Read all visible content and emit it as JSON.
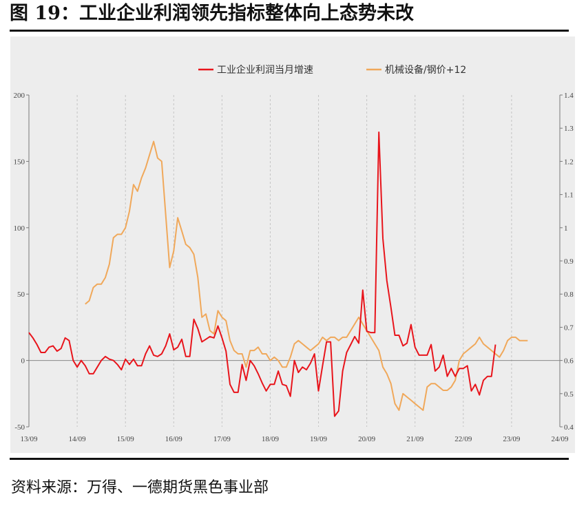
{
  "figure": {
    "title": "图 19：工业企业利润领先指标整体向上态势未改",
    "source": "资料来源：万得、一德期货黑色事业部"
  },
  "chart_data": {
    "type": "line",
    "legend_position": "top-center",
    "grid": "vertical-dashed",
    "x_tick_labels": [
      "13/09",
      "14/09",
      "15/09",
      "16/09",
      "17/09",
      "18/09",
      "19/09",
      "20/09",
      "21/09",
      "22/09",
      "23/09",
      "24/09"
    ],
    "y_left": {
      "ylim": [
        -50,
        200
      ],
      "ticks": [
        -50,
        0,
        50,
        100,
        150,
        200
      ]
    },
    "y_right": {
      "ylim": [
        0.4,
        1.4
      ],
      "ticks": [
        "0.4",
        "0.5",
        "0.6",
        "0.7",
        "0.8",
        "0.9",
        "1",
        "1.1",
        "1.2",
        "1.3",
        "1.4"
      ]
    },
    "series": [
      {
        "name": "工业企业利润当月增速",
        "axis": "left",
        "color": "#e8141b",
        "points": [
          [
            "2013-09",
            21
          ],
          [
            "2013-10",
            17
          ],
          [
            "2013-11",
            12
          ],
          [
            "2013-12",
            6
          ],
          [
            "2014-01",
            6
          ],
          [
            "2014-02",
            10
          ],
          [
            "2014-03",
            11
          ],
          [
            "2014-04",
            7
          ],
          [
            "2014-05",
            9
          ],
          [
            "2014-06",
            17
          ],
          [
            "2014-07",
            15
          ],
          [
            "2014-08",
            0
          ],
          [
            "2014-09",
            -5
          ],
          [
            "2014-10",
            0
          ],
          [
            "2014-11",
            -4
          ],
          [
            "2014-12",
            -10
          ],
          [
            "2015-01",
            -10
          ],
          [
            "2015-02",
            -5
          ],
          [
            "2015-03",
            0
          ],
          [
            "2015-04",
            3
          ],
          [
            "2015-05",
            1
          ],
          [
            "2015-06",
            0
          ],
          [
            "2015-07",
            -3
          ],
          [
            "2015-08",
            -7
          ],
          [
            "2015-09",
            1
          ],
          [
            "2015-10",
            -3
          ],
          [
            "2015-11",
            1
          ],
          [
            "2015-12",
            -4
          ],
          [
            "2016-01",
            -4
          ],
          [
            "2016-02",
            5
          ],
          [
            "2016-03",
            11
          ],
          [
            "2016-04",
            4
          ],
          [
            "2016-05",
            3
          ],
          [
            "2016-06",
            5
          ],
          [
            "2016-07",
            11
          ],
          [
            "2016-08",
            20
          ],
          [
            "2016-09",
            8
          ],
          [
            "2016-10",
            10
          ],
          [
            "2016-11",
            16
          ],
          [
            "2016-12",
            3
          ],
          [
            "2017-01",
            3
          ],
          [
            "2017-02",
            31
          ],
          [
            "2017-03",
            24
          ],
          [
            "2017-04",
            14
          ],
          [
            "2017-05",
            16
          ],
          [
            "2017-06",
            18
          ],
          [
            "2017-07",
            17
          ],
          [
            "2017-08",
            26
          ],
          [
            "2017-09",
            17
          ],
          [
            "2017-10",
            7
          ],
          [
            "2017-11",
            -18
          ],
          [
            "2017-12",
            -24
          ],
          [
            "2018-01",
            -24
          ],
          [
            "2018-02",
            -3
          ],
          [
            "2018-03",
            -15
          ],
          [
            "2018-04",
            0
          ],
          [
            "2018-05",
            -4
          ],
          [
            "2018-06",
            -10
          ],
          [
            "2018-07",
            -17
          ],
          [
            "2018-08",
            -23
          ],
          [
            "2018-09",
            -18
          ],
          [
            "2018-10",
            -18
          ],
          [
            "2018-11",
            -8
          ],
          [
            "2018-12",
            -18
          ],
          [
            "2019-01",
            -19
          ],
          [
            "2019-02",
            -27
          ],
          [
            "2019-03",
            0
          ],
          [
            "2019-04",
            -9
          ],
          [
            "2019-05",
            -5
          ],
          [
            "2019-06",
            -7
          ],
          [
            "2019-07",
            -2
          ],
          [
            "2019-08",
            5
          ],
          [
            "2019-09",
            -23
          ],
          [
            "2019-10",
            -4
          ],
          [
            "2019-11",
            14
          ],
          [
            "2019-12",
            14
          ],
          [
            "2020-01",
            -42
          ],
          [
            "2020-02",
            -38
          ],
          [
            "2020-03",
            -8
          ],
          [
            "2020-04",
            6
          ],
          [
            "2020-05",
            12
          ],
          [
            "2020-06",
            18
          ],
          [
            "2020-07",
            13
          ],
          [
            "2020-08",
            53
          ],
          [
            "2020-09",
            22
          ],
          [
            "2020-10",
            21
          ],
          [
            "2020-11",
            21
          ],
          [
            "2020-12",
            172
          ],
          [
            "2021-01",
            92
          ],
          [
            "2021-02",
            60
          ],
          [
            "2021-03",
            40
          ],
          [
            "2021-04",
            19
          ],
          [
            "2021-05",
            19
          ],
          [
            "2021-06",
            11
          ],
          [
            "2021-07",
            13
          ],
          [
            "2021-08",
            27
          ],
          [
            "2021-09",
            10
          ],
          [
            "2021-10",
            4
          ],
          [
            "2021-11",
            4
          ],
          [
            "2021-12",
            4
          ],
          [
            "2022-01",
            12
          ],
          [
            "2022-02",
            -8
          ],
          [
            "2022-03",
            -5
          ],
          [
            "2022-04",
            4
          ],
          [
            "2022-05",
            -12
          ],
          [
            "2022-06",
            -6
          ],
          [
            "2022-07",
            -12
          ],
          [
            "2022-08",
            -6
          ],
          [
            "2022-09",
            -6
          ],
          [
            "2022-10",
            -4
          ],
          [
            "2022-11",
            -23
          ],
          [
            "2022-12",
            -18
          ],
          [
            "2023-01",
            -26
          ],
          [
            "2023-02",
            -15
          ],
          [
            "2023-03",
            -12
          ],
          [
            "2023-04",
            -12
          ],
          [
            "2023-05",
            12
          ]
        ]
      },
      {
        "name": "机械设备/钢价+12",
        "axis": "right",
        "color": "#f0a85a",
        "points": [
          [
            "2014-11",
            0.77
          ],
          [
            "2014-12",
            0.78
          ],
          [
            "2015-01",
            0.82
          ],
          [
            "2015-02",
            0.83
          ],
          [
            "2015-03",
            0.83
          ],
          [
            "2015-04",
            0.85
          ],
          [
            "2015-05",
            0.89
          ],
          [
            "2015-06",
            0.97
          ],
          [
            "2015-07",
            0.98
          ],
          [
            "2015-08",
            0.98
          ],
          [
            "2015-09",
            1.0
          ],
          [
            "2015-10",
            1.05
          ],
          [
            "2015-11",
            1.13
          ],
          [
            "2015-12",
            1.11
          ],
          [
            "2016-01",
            1.15
          ],
          [
            "2016-02",
            1.18
          ],
          [
            "2016-03",
            1.22
          ],
          [
            "2016-04",
            1.26
          ],
          [
            "2016-05",
            1.21
          ],
          [
            "2016-06",
            1.2
          ],
          [
            "2016-07",
            1.04
          ],
          [
            "2016-08",
            0.88
          ],
          [
            "2016-09",
            0.93
          ],
          [
            "2016-10",
            1.03
          ],
          [
            "2016-11",
            0.99
          ],
          [
            "2016-12",
            0.95
          ],
          [
            "2017-01",
            0.94
          ],
          [
            "2017-02",
            0.92
          ],
          [
            "2017-03",
            0.85
          ],
          [
            "2017-04",
            0.73
          ],
          [
            "2017-05",
            0.74
          ],
          [
            "2017-06",
            0.69
          ],
          [
            "2017-07",
            0.68
          ],
          [
            "2017-08",
            0.75
          ],
          [
            "2017-09",
            0.73
          ],
          [
            "2017-10",
            0.72
          ],
          [
            "2017-11",
            0.66
          ],
          [
            "2017-12",
            0.63
          ],
          [
            "2018-01",
            0.62
          ],
          [
            "2018-02",
            0.62
          ],
          [
            "2018-03",
            0.58
          ],
          [
            "2018-04",
            0.63
          ],
          [
            "2018-05",
            0.63
          ],
          [
            "2018-06",
            0.64
          ],
          [
            "2018-07",
            0.62
          ],
          [
            "2018-08",
            0.62
          ],
          [
            "2018-09",
            0.6
          ],
          [
            "2018-10",
            0.61
          ],
          [
            "2018-11",
            0.6
          ],
          [
            "2018-12",
            0.58
          ],
          [
            "2019-01",
            0.58
          ],
          [
            "2019-02",
            0.61
          ],
          [
            "2019-03",
            0.65
          ],
          [
            "2019-04",
            0.66
          ],
          [
            "2019-05",
            0.65
          ],
          [
            "2019-06",
            0.64
          ],
          [
            "2019-07",
            0.63
          ],
          [
            "2019-08",
            0.64
          ],
          [
            "2019-09",
            0.65
          ],
          [
            "2019-10",
            0.67
          ],
          [
            "2019-11",
            0.66
          ],
          [
            "2019-12",
            0.67
          ],
          [
            "2020-01",
            0.67
          ],
          [
            "2020-02",
            0.66
          ],
          [
            "2020-03",
            0.67
          ],
          [
            "2020-04",
            0.67
          ],
          [
            "2020-05",
            0.69
          ],
          [
            "2020-06",
            0.71
          ],
          [
            "2020-07",
            0.73
          ],
          [
            "2020-08",
            0.71
          ],
          [
            "2020-09",
            0.69
          ],
          [
            "2020-10",
            0.67
          ],
          [
            "2020-11",
            0.65
          ],
          [
            "2020-12",
            0.63
          ],
          [
            "2021-01",
            0.58
          ],
          [
            "2021-02",
            0.56
          ],
          [
            "2021-03",
            0.53
          ],
          [
            "2021-04",
            0.47
          ],
          [
            "2021-05",
            0.45
          ],
          [
            "2021-06",
            0.5
          ],
          [
            "2021-07",
            0.49
          ],
          [
            "2021-08",
            0.48
          ],
          [
            "2021-09",
            0.47
          ],
          [
            "2021-10",
            0.46
          ],
          [
            "2021-11",
            0.45
          ],
          [
            "2021-12",
            0.52
          ],
          [
            "2022-01",
            0.53
          ],
          [
            "2022-02",
            0.53
          ],
          [
            "2022-03",
            0.52
          ],
          [
            "2022-04",
            0.51
          ],
          [
            "2022-05",
            0.51
          ],
          [
            "2022-06",
            0.52
          ],
          [
            "2022-07",
            0.54
          ],
          [
            "2022-08",
            0.6
          ],
          [
            "2022-09",
            0.62
          ],
          [
            "2022-10",
            0.63
          ],
          [
            "2022-11",
            0.64
          ],
          [
            "2022-12",
            0.65
          ],
          [
            "2023-01",
            0.67
          ],
          [
            "2023-02",
            0.65
          ],
          [
            "2023-03",
            0.64
          ],
          [
            "2023-04",
            0.63
          ],
          [
            "2023-05",
            0.62
          ],
          [
            "2023-06",
            0.61
          ],
          [
            "2023-07",
            0.63
          ],
          [
            "2023-08",
            0.66
          ],
          [
            "2023-09",
            0.67
          ],
          [
            "2023-10",
            0.67
          ],
          [
            "2023-11",
            0.66
          ],
          [
            "2023-12",
            0.66
          ],
          [
            "2024-01",
            0.66
          ]
        ]
      }
    ]
  }
}
